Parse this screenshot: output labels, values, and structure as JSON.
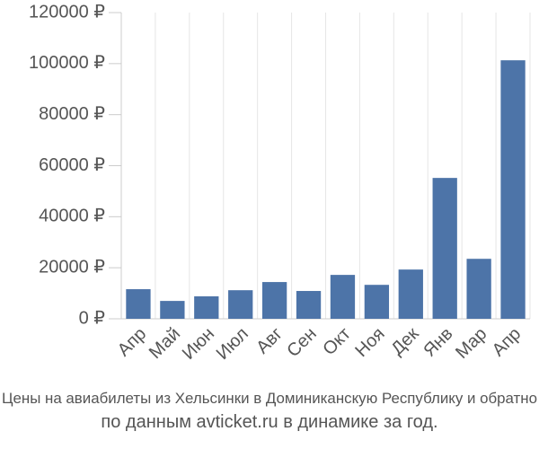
{
  "chart_data": {
    "type": "bar",
    "categories": [
      "Апр",
      "Май",
      "Июн",
      "Июл",
      "Авг",
      "Сен",
      "Окт",
      "Ноя",
      "Дек",
      "Янв",
      "Мар",
      "Апр"
    ],
    "values": [
      11600,
      7000,
      8800,
      11200,
      14400,
      10900,
      17200,
      13300,
      19300,
      55200,
      23500,
      101300
    ],
    "color": "#4d74a8",
    "ylim": [
      0,
      120000
    ],
    "yticks": [
      {
        "value": 0,
        "label": "0 ₽"
      },
      {
        "value": 20000,
        "label": "20000 ₽"
      },
      {
        "value": 40000,
        "label": "40000 ₽"
      },
      {
        "value": 60000,
        "label": "60000 ₽"
      },
      {
        "value": 80000,
        "label": "80000 ₽"
      },
      {
        "value": 100000,
        "label": "100000 ₽"
      },
      {
        "value": 120000,
        "label": "120000 ₽"
      }
    ],
    "grid": true,
    "caption": [
      "Цены на авиабилеты из Хельсинки в Доминиканскую Республику и обратно",
      "по данным avticket.ru в динамике за год."
    ]
  }
}
